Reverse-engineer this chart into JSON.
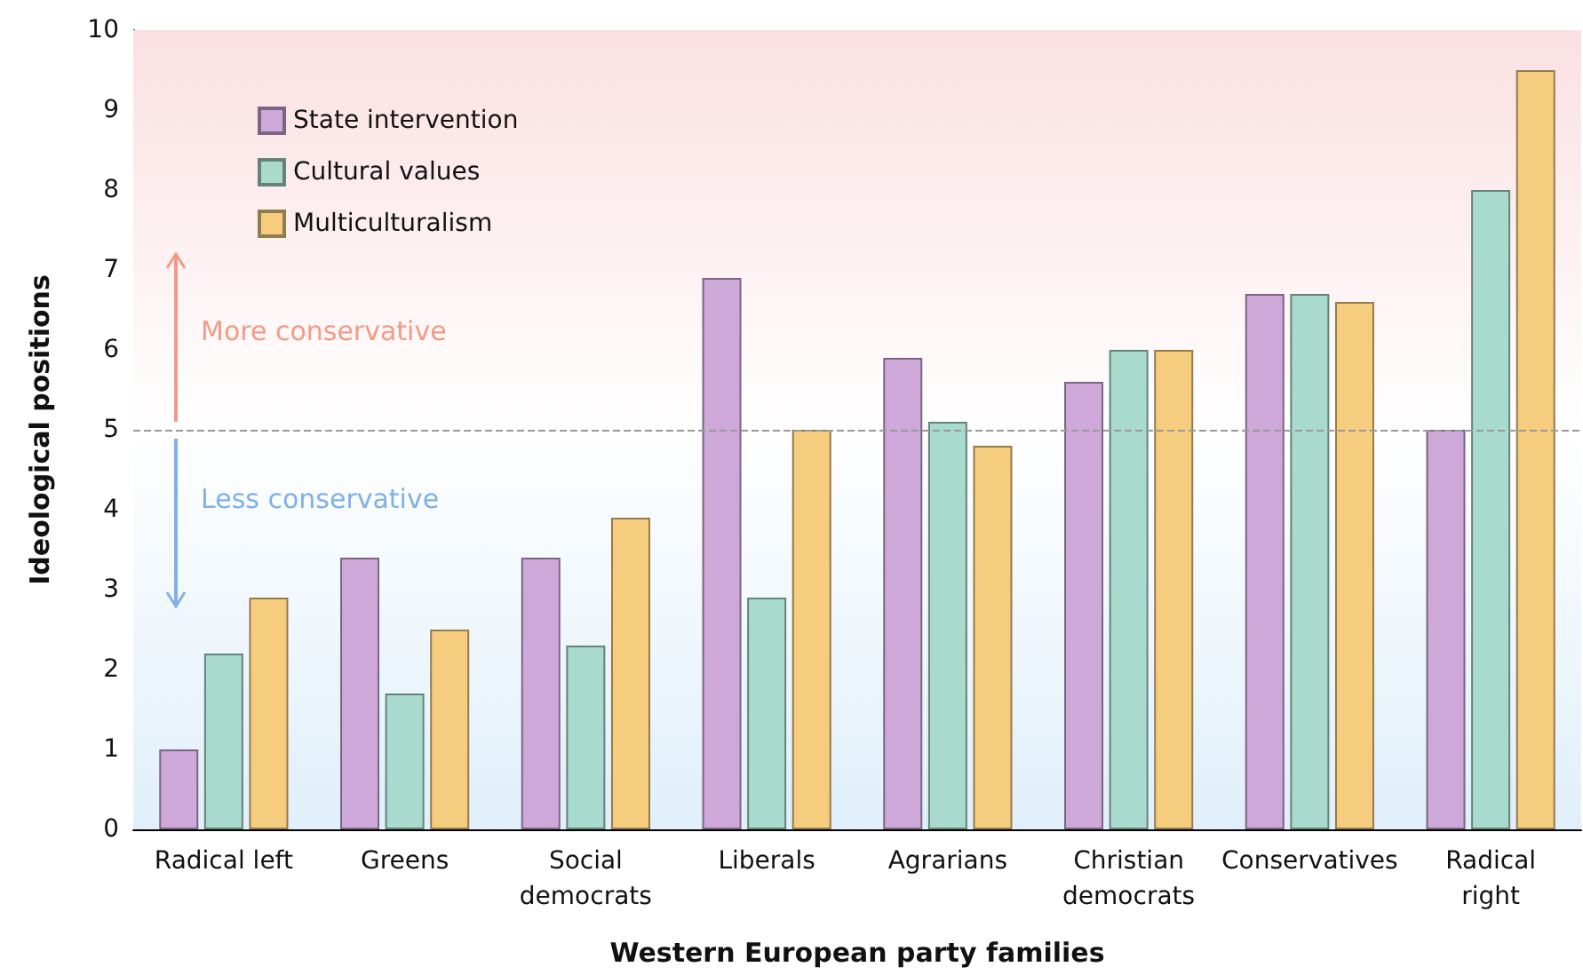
{
  "chart_data": {
    "type": "bar",
    "xlabel": "Western European party families",
    "ylabel": "Ideological positions",
    "categories": [
      "Radical left",
      "Greens",
      "Social\ndemocrats",
      "Liberals",
      "Agrarians",
      "Christian\ndemocrats",
      "Conservatives",
      "Radical\nright"
    ],
    "series": [
      {
        "name": "State intervention",
        "color": "#cda8d8",
        "values": [
          1.0,
          3.4,
          3.4,
          6.9,
          5.9,
          5.6,
          6.7,
          5.0
        ]
      },
      {
        "name": "Cultural values",
        "color": "#a8dacd",
        "values": [
          2.2,
          1.7,
          2.3,
          2.9,
          5.1,
          6.0,
          6.7,
          8.0
        ]
      },
      {
        "name": "Multiculturalism",
        "color": "#f6cd7e",
        "values": [
          2.9,
          2.5,
          3.9,
          5.0,
          4.8,
          6.0,
          6.6,
          9.5
        ]
      }
    ],
    "ylim": [
      0,
      10
    ],
    "yticks": [
      0,
      1,
      2,
      3,
      4,
      5,
      6,
      7,
      8,
      9,
      10
    ],
    "legend": "top left",
    "ref_lines": [
      {
        "axis": "y",
        "value": 5,
        "color": "#999999",
        "line_style": "dashed"
      }
    ],
    "bands": [
      {
        "axis": "y",
        "from": 5,
        "to": 10,
        "color": "#fbe0e2"
      },
      {
        "axis": "y",
        "from": 0,
        "to": 5,
        "color": "#e0effa"
      }
    ],
    "annotations": [
      "More conservative",
      "Less conservative"
    ]
  }
}
